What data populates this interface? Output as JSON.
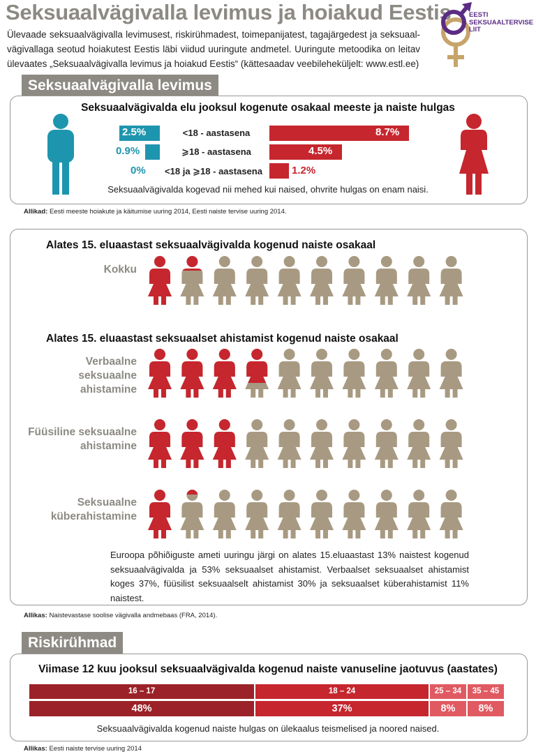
{
  "header": {
    "title": "Seksuaalvägivalla levimus ja hoiakud Eestis",
    "intro": "Ülevaade seksuaalvägivalla levimusest, riskirühmadest, toimepanijatest, tagajärgedest ja seksuaal-vägivallaga seotud hoiakutest Eestis läbi viidud uuringute andmetel. Uuringute metoodika on leitav ülevaates „Seksuaalvägivalla levimus ja hoiakud Eestis“ (kättesaadav veebileheküljelt: www.estl.ee)",
    "logo_lines": [
      "EESTI",
      "SEKSUAALTERVISE",
      "LIIT"
    ]
  },
  "sections": {
    "prevalence_tab": "Seksuaalvägivalla levimus",
    "risk_tab": "Riskirühmad"
  },
  "colors": {
    "grey": "#8d8a84",
    "teal": "#1e95ae",
    "red": "#c6262e",
    "tan": "#a89a82",
    "dark_red": "#9b2228",
    "light_red": "#e05a62",
    "logo_purple": "#5b2c83",
    "logo_gold": "#c7a46a"
  },
  "chart_data": [
    {
      "type": "bar",
      "title": "Seksuaalvägivalda elu jooksul kogenute osakaal meeste ja naiste hulgas",
      "categories": [
        "<18 - aastasena",
        "⩾18 - aastasena",
        "<18 ja ⩾18 - aastasena"
      ],
      "series": [
        {
          "name": "mehed",
          "values": [
            2.5,
            0.9,
            0
          ],
          "labels": [
            "2.5%",
            "0.9%",
            "0%"
          ]
        },
        {
          "name": "naised",
          "values": [
            8.7,
            4.5,
            1.2
          ],
          "labels": [
            "8.7%",
            "4.5%",
            "1.2%"
          ]
        }
      ],
      "note": "Seksuaalvägivalda kogevad nii mehed kui naised, ohvrite hulgas on enam naisi.",
      "source_label": "Allikad:",
      "source": "Eesti meeste hoiakute ja käitumise uuring 2014, Eesti naiste tervise uuring 2014."
    },
    {
      "type": "pictogram",
      "title": "Alates 15. eluaastast seksuaalvägivalda kogenud naiste osakaal",
      "rows": [
        {
          "label": "Kokku",
          "percent": 13
        }
      ]
    },
    {
      "type": "pictogram",
      "title": "Alates 15. eluaastast seksuaalset ahistamist kogenud naiste osakaal",
      "rows": [
        {
          "label": "Verbaalne seksuaalne ahistamine",
          "percent": 37
        },
        {
          "label": "Füüsiline seksuaalne ahistamine",
          "percent": 30
        },
        {
          "label": "Seksuaalne küberahistamine",
          "percent": 11
        }
      ],
      "note": "Euroopa põhiõiguste ameti uuringu järgi on alates 15.eluaastast 13% naistest kogenud seksuaalvägivalda ja 53% seksuaalset ahistamist. Verbaalset seksuaalset ahistamist koges 37%, füüsilist seksuaalselt ahistamist 30% ja seksuaalset küberahistamist 11% naistest.",
      "source_label": "Allikas:",
      "source": "Naistevastase soolise vägivalla andmebaas (FRA, 2014)."
    },
    {
      "type": "bar",
      "title": "Viimase 12 kuu jooksul seksuaalvägivalda kogenud naiste vanuseline jaotuvus (aastates)",
      "categories": [
        "16 – 17",
        "18 – 24",
        "25 – 34",
        "35 – 45"
      ],
      "values": [
        48,
        37,
        8,
        8
      ],
      "labels": [
        "48%",
        "37%",
        "8%",
        "8%"
      ],
      "note": "Seksuaalvägivalda kogenud naiste hulgas on ülekaalus teismelised ja noored naised.",
      "source_label": "Allikas:",
      "source": "Eesti naiste tervise uuring 2014"
    }
  ]
}
